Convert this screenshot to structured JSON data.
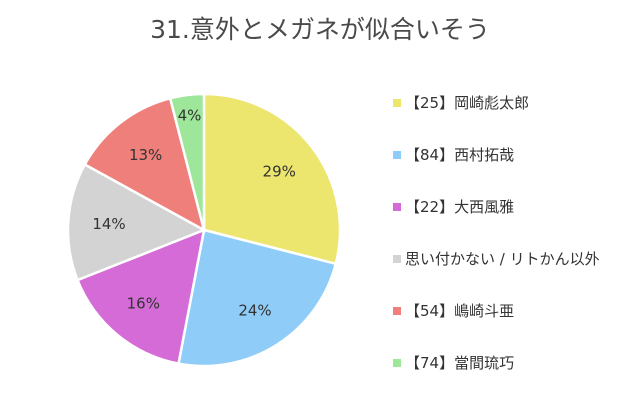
{
  "chart_data": {
    "type": "pie",
    "title": "31.意外とメガネが似合いそう",
    "legend_position": "right",
    "slices": [
      {
        "label": "【25】岡崎彪太郎",
        "value": 29,
        "value_label": "29%",
        "color": "#ece56e"
      },
      {
        "label": "【84】西村拓哉",
        "value": 24,
        "value_label": "24%",
        "color": "#8fcdf8"
      },
      {
        "label": "【22】大西風雅",
        "value": 16,
        "value_label": "16%",
        "color": "#d56bd6"
      },
      {
        "label": "思い付かない / リトかん以外",
        "value": 14,
        "value_label": "14%",
        "color": "#d3d3d3"
      },
      {
        "label": "【54】嶋崎斗亜",
        "value": 13,
        "value_label": "13%",
        "color": "#ef7f7b"
      },
      {
        "label": "【74】當間琉巧",
        "value": 4,
        "value_label": "4%",
        "color": "#9ee69a"
      }
    ]
  }
}
